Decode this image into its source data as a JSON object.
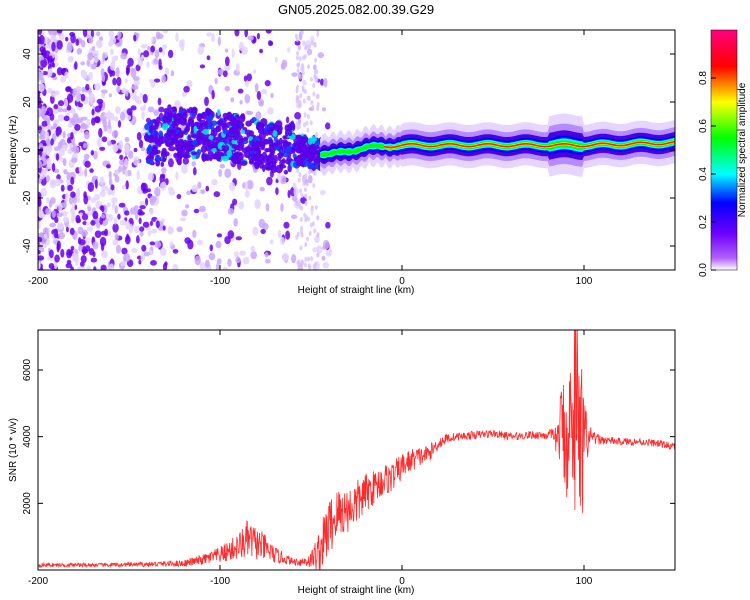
{
  "title": "GN05.2025.082.00.39.G29",
  "chart_data": [
    {
      "type": "heatmap",
      "xlabel": "Height of straight line (km)",
      "ylabel": "Frequency (Hz)",
      "xlim": [
        -200,
        150
      ],
      "ylim": [
        -50,
        50
      ],
      "xticks": [
        -200,
        -100,
        0,
        100
      ],
      "yticks": [
        -40,
        -20,
        0,
        20,
        40
      ],
      "colorbar": {
        "label": "Normalized spectral amplitude",
        "range": [
          0,
          1
        ],
        "ticks": [
          "0.0",
          "0.2",
          "0.4",
          "0.6",
          "0.8"
        ],
        "colormap": [
          "#ffffff",
          "#8000ff",
          "#0000ff",
          "#00ffff",
          "#00ff00",
          "#ffff00",
          "#ff0000",
          "#ff0080"
        ]
      },
      "ridge": {
        "description_points": [
          {
            "x": -130,
            "f": 8
          },
          {
            "x": -100,
            "f": 6
          },
          {
            "x": -60,
            "f": 0
          },
          {
            "x": -40,
            "f": -2
          },
          {
            "x": -20,
            "f": 1
          },
          {
            "x": 0,
            "f": 2
          },
          {
            "x": 50,
            "f": 2
          },
          {
            "x": 100,
            "f": 2
          },
          {
            "x": 150,
            "f": 3
          }
        ]
      }
    },
    {
      "type": "line",
      "xlabel": "Height of straight line (km)",
      "ylabel": "SNR (10 * v/v)",
      "xlim": [
        -200,
        150
      ],
      "ylim": [
        0,
        7200
      ],
      "xticks": [
        -200,
        -100,
        0,
        100
      ],
      "yticks": [
        2000,
        4000,
        6000
      ],
      "color": "#ff2a2a",
      "series": [
        {
          "x": [
            -200,
            -180,
            -160,
            -140,
            -120,
            -110,
            -100,
            -90,
            -85,
            -80,
            -75,
            -70,
            -60,
            -55,
            -50,
            -45,
            -40,
            -35,
            -30,
            -25,
            -20,
            -15,
            -10,
            -5,
            0,
            5,
            10,
            15,
            20,
            25,
            30,
            40,
            50,
            60,
            70,
            80,
            85,
            88,
            90,
            92,
            95,
            97,
            99,
            100,
            102,
            105,
            110,
            120,
            130,
            140,
            150
          ],
          "values": [
            150,
            150,
            150,
            170,
            200,
            300,
            450,
            700,
            900,
            800,
            650,
            450,
            250,
            250,
            300,
            600,
            1300,
            1700,
            1800,
            2000,
            2300,
            2500,
            2700,
            2800,
            3100,
            3300,
            3400,
            3500,
            3800,
            3950,
            4000,
            4050,
            4100,
            4000,
            4050,
            4050,
            3900,
            4400,
            3800,
            4500,
            3700,
            4200,
            3600,
            4000,
            3900,
            3950,
            3900,
            3850,
            3850,
            3800,
            3700
          ],
          "noise": [
            60,
            60,
            60,
            70,
            100,
            150,
            250,
            400,
            600,
            500,
            400,
            250,
            100,
            150,
            250,
            700,
            900,
            800,
            700,
            700,
            600,
            500,
            500,
            450,
            400,
            350,
            300,
            250,
            200,
            150,
            120,
            120,
            120,
            120,
            120,
            150,
            400,
            1500,
            1800,
            2000,
            2200,
            2400,
            2800,
            1500,
            600,
            200,
            130,
            110,
            110,
            110,
            110
          ]
        }
      ]
    }
  ]
}
